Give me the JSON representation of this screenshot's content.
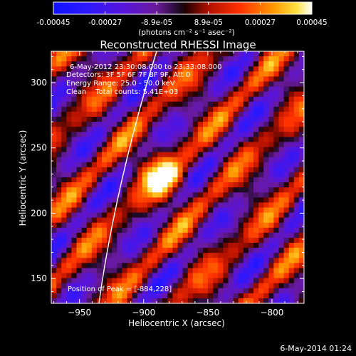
{
  "colorbar": {
    "tick_labels": [
      "-0.00045",
      "-0.00027",
      "-8.9e-05",
      "8.9e-05",
      "0.00027",
      "0.00045"
    ],
    "min": -0.00045,
    "max": 0.00045,
    "units_label": "(photons cm⁻² s⁻¹ asec⁻²)"
  },
  "chart_data": {
    "type": "heatmap",
    "title": "Reconstructed RHESSI Image",
    "xlabel": "Heliocentric X (arcsec)",
    "ylabel": "Heliocentric Y (arcsec)",
    "xlim": [
      -972,
      -775
    ],
    "ylim": [
      131,
      324
    ],
    "x_ticks": [
      -950,
      -900,
      -850,
      -800
    ],
    "x_tick_labels": [
      "−950",
      "−900",
      "−850",
      "−800"
    ],
    "y_ticks": [
      150,
      200,
      250,
      300
    ],
    "y_tick_labels": [
      "150",
      "200",
      "250",
      "300"
    ],
    "peak": [
      -884,
      228
    ],
    "annotations": [
      "6-May-2012 23:30:08.000 to 23:33:08.000",
      "Detectors: 3F 5F 6F 7F 8F 9F, Att 0",
      "Energy Range: 25.0 - 50.0 keV",
      "Clean    Total counts: 5.41E+03"
    ],
    "peak_label": "Position of Peak = [-884,228]",
    "colors": {
      "background": "#000000",
      "axis": "#ffffff"
    }
  },
  "footer": "6-May-2014 01:24"
}
